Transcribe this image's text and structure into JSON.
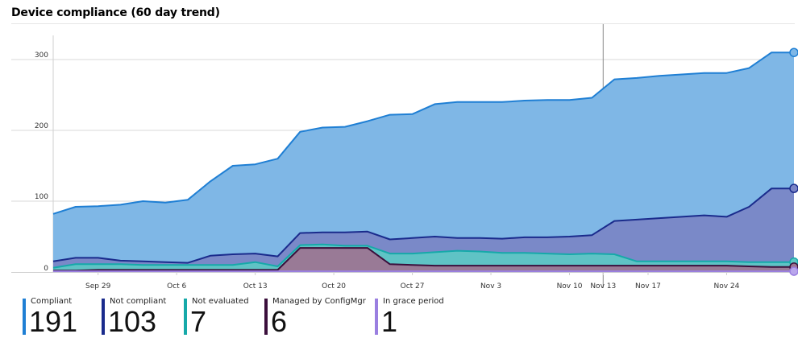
{
  "title": "Device compliance (60 day trend)",
  "legend": [
    {
      "label": "Compliant",
      "value": "191",
      "color": "#1f7fd4"
    },
    {
      "label": "Not compliant",
      "value": "103",
      "color": "#1a2b8c"
    },
    {
      "label": "Not evaluated",
      "value": "7",
      "color": "#16a9a9"
    },
    {
      "label": "Managed by ConfigMgr",
      "value": "6",
      "color": "#3b0f3c"
    },
    {
      "label": "In grace period",
      "value": "1",
      "color": "#9a7fe0"
    }
  ],
  "chart_data": {
    "type": "area",
    "title": "Device compliance (60 day trend)",
    "x_range": [
      "Sep 25",
      "Nov 30"
    ],
    "ylim": [
      0,
      350
    ],
    "y_ticks": [
      0,
      100,
      200,
      300
    ],
    "x_tick_labels": [
      "Sep 29",
      "Oct 6",
      "Oct 13",
      "Oct 20",
      "Oct 27",
      "Nov 3",
      "Nov 10",
      "Nov 13",
      "Nov 17",
      "Nov 24"
    ],
    "highlight_date": "Nov 13",
    "grid": "horizontal",
    "x": [
      "Sep 25",
      "Sep 27",
      "Sep 29",
      "Oct 1",
      "Oct 3",
      "Oct 5",
      "Oct 7",
      "Oct 9",
      "Oct 11",
      "Oct 13",
      "Oct 15",
      "Oct 17",
      "Oct 19",
      "Oct 21",
      "Oct 23",
      "Oct 25",
      "Oct 27",
      "Oct 29",
      "Oct 31",
      "Nov 2",
      "Nov 4",
      "Nov 6",
      "Nov 8",
      "Nov 10",
      "Nov 12",
      "Nov 14",
      "Nov 16",
      "Nov 18",
      "Nov 20",
      "Nov 22",
      "Nov 24",
      "Nov 26",
      "Nov 28",
      "Nov 30"
    ],
    "series": [
      {
        "name": "Compliant",
        "color": "#1f7fd4",
        "fill": "#7fb7e6",
        "values": [
          82,
          92,
          93,
          95,
          100,
          98,
          102,
          128,
          150,
          152,
          160,
          198,
          204,
          205,
          213,
          222,
          223,
          237,
          240,
          240,
          240,
          242,
          243,
          243,
          246,
          272,
          274,
          277,
          279,
          281,
          281,
          288,
          310,
          310
        ]
      },
      {
        "name": "Not compliant",
        "color": "#1a2b8c",
        "fill": "#7a84c6",
        "values": [
          15,
          20,
          20,
          16,
          15,
          14,
          13,
          23,
          25,
          26,
          22,
          55,
          56,
          56,
          57,
          46,
          48,
          50,
          48,
          48,
          47,
          49,
          49,
          50,
          52,
          72,
          74,
          76,
          78,
          80,
          78,
          92,
          118,
          118
        ]
      },
      {
        "name": "Not evaluated",
        "color": "#16a9a9",
        "fill": "#5cc8c4",
        "values": [
          6,
          11,
          11,
          11,
          10,
          10,
          10,
          10,
          10,
          14,
          8,
          38,
          39,
          37,
          37,
          26,
          26,
          28,
          30,
          29,
          27,
          27,
          26,
          25,
          26,
          25,
          15,
          15,
          15,
          15,
          15,
          14,
          14,
          14
        ]
      },
      {
        "name": "Managed by ConfigMgr",
        "color": "#3b0f3c",
        "fill": "#9e7491",
        "values": [
          2,
          2,
          3,
          3,
          3,
          3,
          3,
          3,
          3,
          3,
          3,
          34,
          34,
          34,
          34,
          11,
          10,
          9,
          9,
          9,
          9,
          9,
          9,
          9,
          9,
          9,
          9,
          9,
          9,
          9,
          9,
          8,
          7,
          7
        ]
      },
      {
        "name": "In grace period",
        "color": "#9a7fe0",
        "fill": "#b9a6ec",
        "values": [
          1,
          1,
          1,
          1,
          1,
          1,
          1,
          1,
          1,
          1,
          1,
          1,
          1,
          1,
          1,
          1,
          1,
          1,
          1,
          1,
          1,
          1,
          1,
          1,
          1,
          1,
          1,
          1,
          1,
          1,
          1,
          1,
          1,
          1
        ]
      }
    ]
  }
}
